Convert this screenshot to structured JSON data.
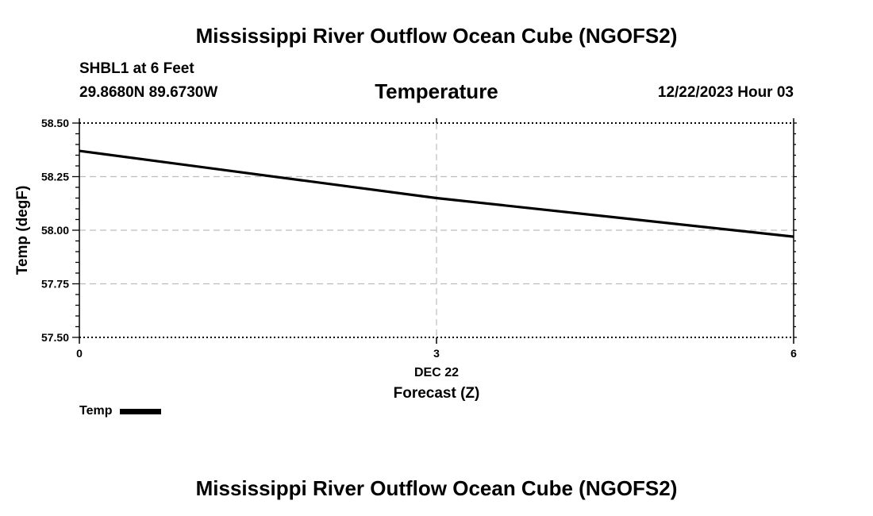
{
  "header": {
    "title": "Mississippi River Outflow Ocean Cube (NGOFS2)",
    "station": "SHBL1 at 6 Feet",
    "coordinates": "29.8680N  89.6730W",
    "subtitle": "Temperature",
    "datetime": "12/22/2023 Hour 03"
  },
  "footer": {
    "title": "Mississippi River Outflow Ocean Cube (NGOFS2)"
  },
  "legend": {
    "label": "Temp"
  },
  "chart_data": {
    "type": "line",
    "title": "Temperature",
    "xlabel": "Forecast (Z)",
    "xsublabel": "DEC 22",
    "ylabel": "Temp (degF)",
    "xlim": [
      0,
      6
    ],
    "ylim": [
      57.5,
      58.5
    ],
    "xticks": [
      0,
      3,
      6
    ],
    "xtick_labels": [
      "0",
      "3",
      "6"
    ],
    "yticks": [
      57.5,
      57.75,
      58.0,
      58.25,
      58.5
    ],
    "ytick_labels": [
      "57.50",
      "57.75",
      "58.00",
      "58.25",
      "58.50"
    ],
    "grid": true,
    "series": [
      {
        "name": "Temp",
        "color": "#000000",
        "x": [
          0,
          3,
          6
        ],
        "y": [
          58.37,
          58.15,
          57.97
        ]
      }
    ]
  }
}
